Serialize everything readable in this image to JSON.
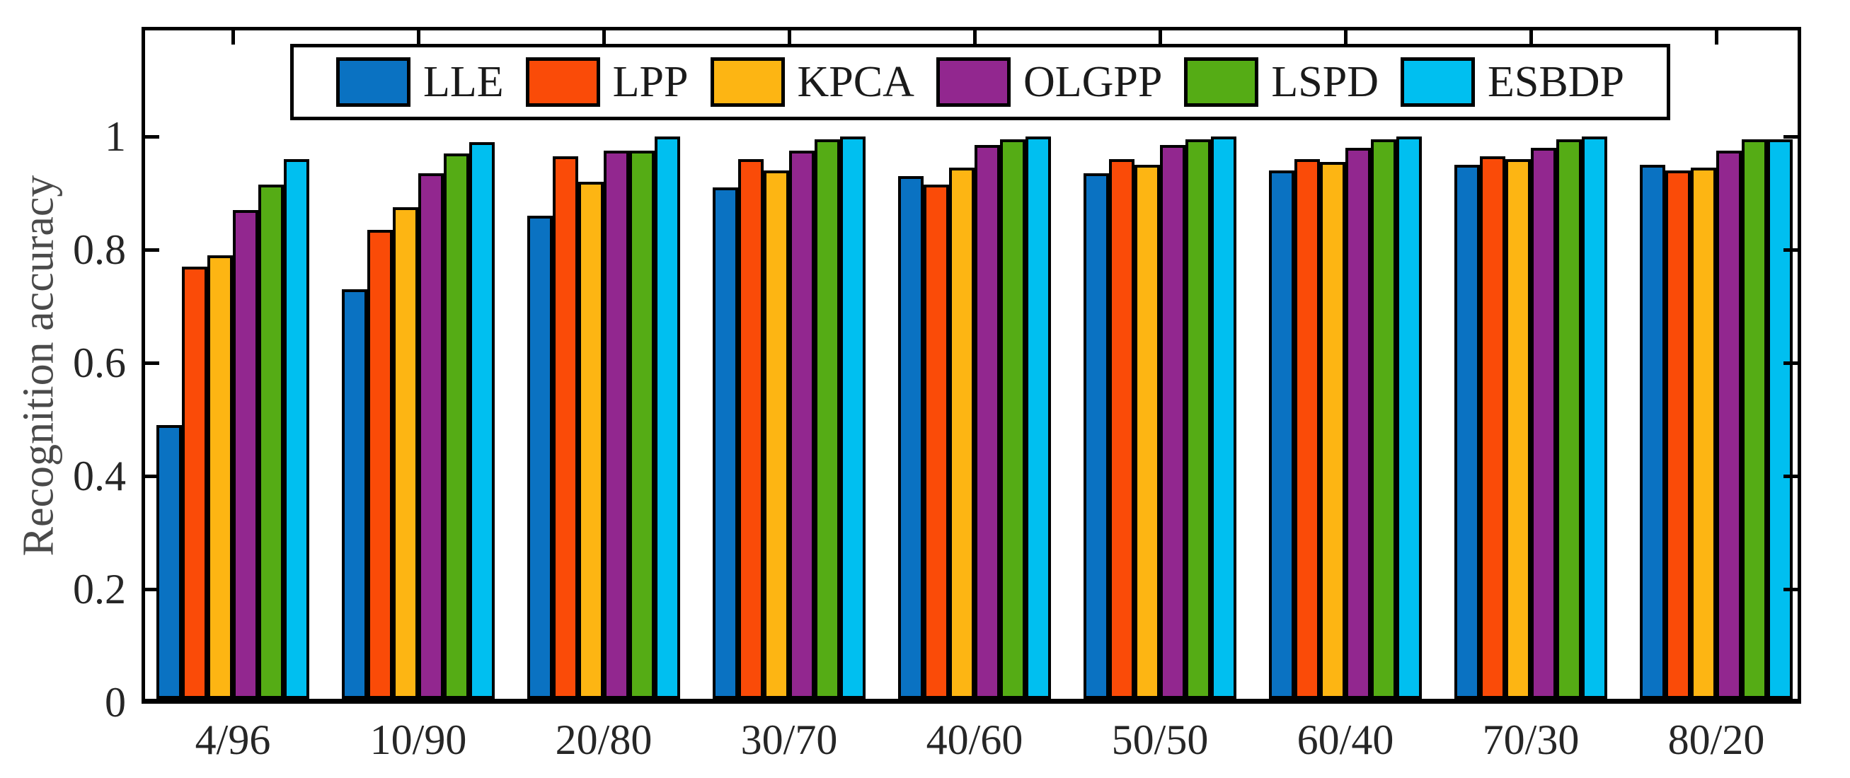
{
  "figure": {
    "background": "#ffffff",
    "frame_color": "#000000",
    "tick_label_color": "#262626",
    "ylabel_color": "#4a4a4a"
  },
  "chart_data": {
    "type": "bar",
    "title": "",
    "xlabel": "",
    "ylabel": "Recognition accuracy",
    "categories": [
      "4/96",
      "10/90",
      "20/80",
      "30/70",
      "40/60",
      "50/50",
      "60/40",
      "70/30",
      "80/20"
    ],
    "series": [
      {
        "name": "LLE",
        "color": "#0a72c2",
        "values": [
          0.49,
          0.73,
          0.86,
          0.91,
          0.93,
          0.935,
          0.94,
          0.95,
          0.95
        ]
      },
      {
        "name": "LPP",
        "color": "#fa4b08",
        "values": [
          0.77,
          0.835,
          0.965,
          0.96,
          0.915,
          0.96,
          0.96,
          0.965,
          0.94
        ]
      },
      {
        "name": "KPCA",
        "color": "#fdb513",
        "values": [
          0.79,
          0.875,
          0.92,
          0.94,
          0.945,
          0.95,
          0.955,
          0.96,
          0.945
        ]
      },
      {
        "name": "OLGPP",
        "color": "#92278f",
        "values": [
          0.87,
          0.935,
          0.975,
          0.975,
          0.985,
          0.985,
          0.98,
          0.98,
          0.975
        ]
      },
      {
        "name": "LSPD",
        "color": "#55ac15",
        "values": [
          0.915,
          0.97,
          0.975,
          0.995,
          0.995,
          0.995,
          0.995,
          0.995,
          0.995
        ]
      },
      {
        "name": "ESBDP",
        "color": "#00bff0",
        "values": [
          0.96,
          0.99,
          1.0,
          1.0,
          1.0,
          1.0,
          1.0,
          1.0,
          0.995
        ]
      }
    ],
    "y_ticks": [
      0,
      0.2,
      0.4,
      0.6,
      0.8,
      1
    ],
    "y_tick_labels": [
      "0",
      "0.2",
      "0.4",
      "0.6",
      "0.8",
      "1"
    ],
    "ylim": [
      0,
      1.2
    ],
    "grid": false,
    "legend_position": "top-horizontal",
    "legend_entries": [
      "LLE",
      "LPP",
      "KPCA",
      "OLGPP",
      "LSPD",
      "ESBDP"
    ]
  }
}
